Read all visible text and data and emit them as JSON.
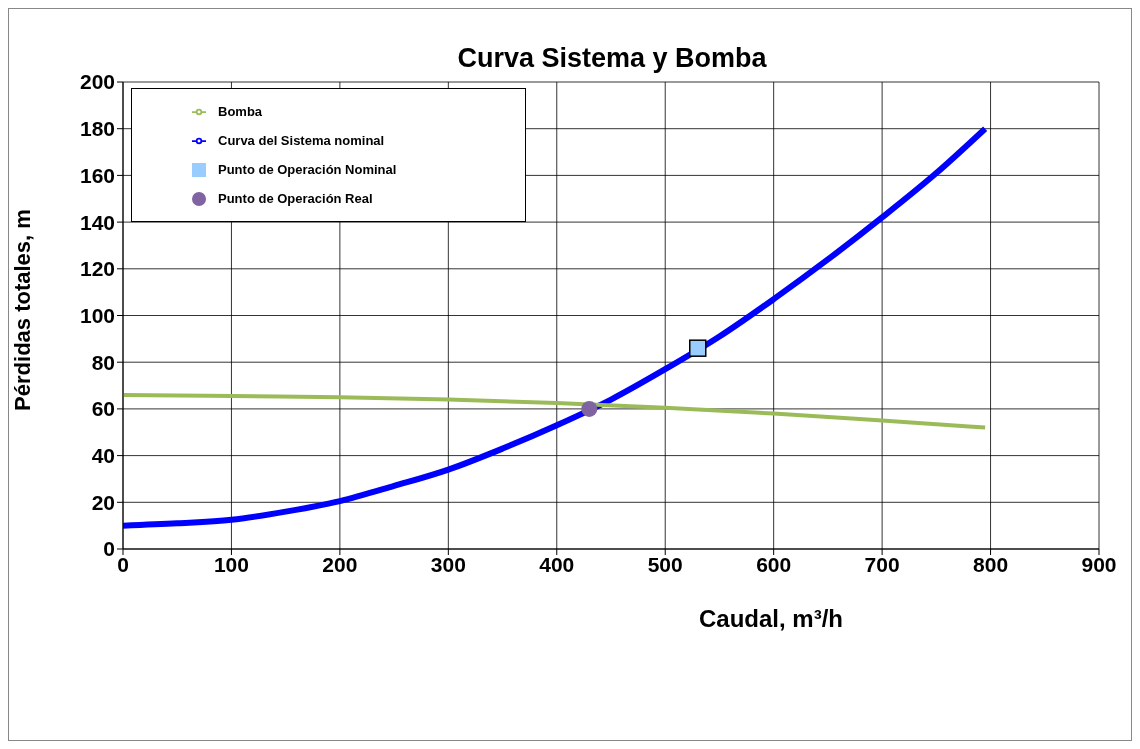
{
  "chart_data": {
    "type": "line",
    "title": "Curva Sistema y Bomba",
    "xlabel": "Caudal, m³/h",
    "ylabel": "Pérdidas totales, m",
    "xlim": [
      0,
      900
    ],
    "xticks": [
      0,
      100,
      200,
      300,
      400,
      500,
      600,
      700,
      800,
      900
    ],
    "ylim": [
      0,
      200
    ],
    "yticks": [
      0,
      20,
      40,
      60,
      80,
      100,
      120,
      140,
      160,
      180,
      200
    ],
    "grid": true,
    "legend": "top left",
    "marker": "none",
    "line_style": "solid",
    "series": [
      {
        "name": "Curva del Sistema nominal",
        "color": "#0000ff",
        "x": [
          0,
          50,
          100,
          150,
          200,
          250,
          300,
          350,
          400,
          450,
          500,
          550,
          600,
          650,
          700,
          750,
          795
        ],
        "values": [
          10,
          11,
          12.5,
          16,
          20.5,
          27,
          34,
          43,
          53,
          64,
          77,
          91,
          107,
          124,
          142,
          161,
          180
        ]
      },
      {
        "name": "Bomba",
        "color": "#9bbb59",
        "x": [
          0,
          100,
          200,
          300,
          400,
          500,
          600,
          700,
          795
        ],
        "values": [
          66,
          65.5,
          65,
          64,
          62.5,
          60.5,
          58,
          55,
          52
        ]
      },
      {
        "name": "Punto de Operación Nominal",
        "type": "scatter",
        "marker": "square",
        "color": "#99ccff",
        "x": [
          530
        ],
        "values": [
          86
        ]
      },
      {
        "name": "Punto de Operación Real",
        "type": "scatter",
        "marker": "circle",
        "color": "#8064a2",
        "x": [
          430
        ],
        "values": [
          60
        ]
      }
    ]
  }
}
